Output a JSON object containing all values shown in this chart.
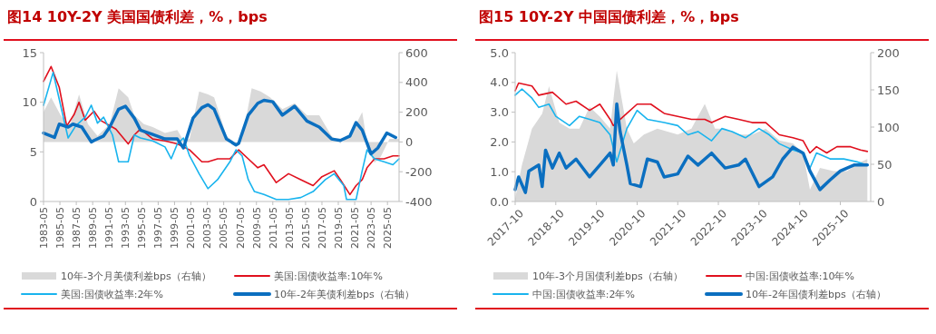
{
  "chart_data": [
    {
      "type": "line",
      "title": "图14  10Y-2Y 美国国债利差，%，bps",
      "legend": "bottom",
      "xlim": [
        "1983-05",
        "2026-10"
      ],
      "xticks": [
        "1983-05",
        "1985-05",
        "1987-05",
        "1989-05",
        "1991-05",
        "1993-05",
        "1995-05",
        "1997-05",
        "1999-05",
        "2001-05",
        "2003-05",
        "2005-05",
        "2007-05",
        "2009-05",
        "2011-05",
        "2013-05",
        "2015-05",
        "2017-05",
        "2019-05",
        "2021-05",
        "2023-05",
        "2025-05"
      ],
      "ylim": [
        0,
        15
      ],
      "yticks": [
        0,
        5,
        10,
        15
      ],
      "y2lim": [
        -400,
        600
      ],
      "y2ticks": [
        -400,
        -200,
        0,
        200,
        400,
        600
      ],
      "series": [
        {
          "name": "10年-3个月美债利差bps（右轴）",
          "type": "area",
          "axis": "y2",
          "color": "#d9d9d9",
          "x": [
            "1983-05",
            "1984-04",
            "1985-06",
            "1986-07",
            "1987-09",
            "1988-10",
            "1989-12",
            "1991-06",
            "1992-07",
            "1993-09",
            "1994-06",
            "1995-08",
            "1996-09",
            "1998-03",
            "1999-09",
            "2000-06",
            "2001-03",
            "2002-05",
            "2003-06",
            "2004-03",
            "2005-09",
            "2006-11",
            "2007-08",
            "2008-10",
            "2009-11",
            "2011-01",
            "2012-07",
            "2014-01",
            "2015-07",
            "2017-01",
            "2018-07",
            "2019-08",
            "2020-10",
            "2021-07",
            "2022-04",
            "2023-01",
            "2023-10",
            "2024-07",
            "2025-08",
            "2026-10"
          ],
          "values": [
            200,
            300,
            180,
            100,
            320,
            120,
            40,
            120,
            360,
            300,
            180,
            120,
            100,
            60,
            80,
            10,
            20,
            340,
            320,
            300,
            40,
            -10,
            20,
            360,
            340,
            300,
            220,
            260,
            180,
            180,
            40,
            -10,
            40,
            120,
            200,
            -60,
            -140,
            -100,
            20,
            20
          ]
        },
        {
          "name": "美国:国债收益率:10年%",
          "type": "line",
          "color": "#e0101e",
          "x": [
            "1983-05",
            "1984-04",
            "1985-04",
            "1986-03",
            "1987-02",
            "1987-09",
            "1988-06",
            "1989-07",
            "1990-04",
            "1992-03",
            "1993-09",
            "1994-06",
            "1995-03",
            "1996-09",
            "1998-03",
            "1999-09",
            "2000-06",
            "2001-03",
            "2002-09",
            "2003-06",
            "2004-08",
            "2006-02",
            "2007-03",
            "2008-05",
            "2009-07",
            "2010-04",
            "2011-10",
            "2013-04",
            "2014-10",
            "2016-04",
            "2017-05",
            "2018-11",
            "2019-08",
            "2020-10",
            "2021-07",
            "2022-04",
            "2022-11",
            "2023-10",
            "2024-12",
            "2026-01",
            "2026-10"
          ],
          "values": [
            12.1,
            13.6,
            11.5,
            7.6,
            8.8,
            10.0,
            8.2,
            9.1,
            8.2,
            7.3,
            5.8,
            6.7,
            7.3,
            6.3,
            6.1,
            5.8,
            5.5,
            5.2,
            4.0,
            4.0,
            4.3,
            4.3,
            5.2,
            4.3,
            3.4,
            3.7,
            1.9,
            2.8,
            2.2,
            1.6,
            2.5,
            3.1,
            2.2,
            0.7,
            1.6,
            2.2,
            3.4,
            4.3,
            4.3,
            4.6,
            4.6
          ]
        },
        {
          "name": "美国:国债收益率:2年%",
          "type": "line",
          "color": "#19b4ee",
          "x": [
            "1983-05",
            "1984-07",
            "1985-06",
            "1986-05",
            "1987-04",
            "1988-06",
            "1989-03",
            "1989-12",
            "1990-09",
            "1991-10",
            "1992-07",
            "1993-09",
            "1994-06",
            "1995-03",
            "1996-09",
            "1998-03",
            "1998-12",
            "1999-09",
            "2000-06",
            "2001-03",
            "2002-05",
            "2003-06",
            "2004-08",
            "2006-02",
            "2006-11",
            "2007-08",
            "2008-05",
            "2009-02",
            "2010-04",
            "2011-10",
            "2013-04",
            "2014-10",
            "2016-04",
            "2017-10",
            "2018-11",
            "2020-01",
            "2020-05",
            "2021-07",
            "2022-04",
            "2022-11",
            "2023-10",
            "2024-12",
            "2026-01",
            "2026-10"
          ],
          "values": [
            9.7,
            13.0,
            9.7,
            6.4,
            7.6,
            8.5,
            9.7,
            7.9,
            8.5,
            6.7,
            4.0,
            4.0,
            6.7,
            6.4,
            6.1,
            5.5,
            4.3,
            5.8,
            6.4,
            4.6,
            2.8,
            1.3,
            2.2,
            4.0,
            5.2,
            4.6,
            2.2,
            1.0,
            0.7,
            0.2,
            0.2,
            0.4,
            1.0,
            2.2,
            2.8,
            1.6,
            0.2,
            0.2,
            3.1,
            5.2,
            4.3,
            4.0,
            3.7,
            4.3
          ]
        },
        {
          "name": "10年-2年美债利差bps（右轴）",
          "type": "line",
          "axis": "y2",
          "color": "#0b6fc0",
          "x": [
            "1983-05",
            "1984-09",
            "1985-04",
            "1986-05",
            "1986-12",
            "1988-01",
            "1989-03",
            "1989-07",
            "1990-09",
            "1991-06",
            "1992-07",
            "1993-05",
            "1994-06",
            "1995-03",
            "1996-09",
            "1998-03",
            "1999-09",
            "2000-06",
            "2001-08",
            "2002-09",
            "2003-06",
            "2004-03",
            "2005-09",
            "2006-11",
            "2007-03",
            "2008-05",
            "2009-07",
            "2010-04",
            "2011-05",
            "2012-07",
            "2014-01",
            "2015-07",
            "2017-01",
            "2018-07",
            "2019-08",
            "2020-10",
            "2021-07",
            "2022-04",
            "2023-05",
            "2024-03",
            "2025-04",
            "2026-05"
          ],
          "values": [
            60,
            30,
            120,
            100,
            120,
            100,
            0,
            10,
            40,
            100,
            220,
            240,
            160,
            80,
            50,
            20,
            20,
            -40,
            160,
            230,
            250,
            220,
            20,
            -20,
            -10,
            180,
            260,
            280,
            270,
            180,
            240,
            140,
            100,
            20,
            10,
            40,
            130,
            80,
            -80,
            -40,
            60,
            30
          ]
        }
      ]
    },
    {
      "type": "line",
      "title": "图15  10Y-2Y 中国国债利差，%，bps",
      "legend": "bottom",
      "xlim": [
        "2017-10",
        "2026-07"
      ],
      "xticks": [
        "2017-10",
        "2018-10",
        "2019-10",
        "2020-10",
        "2021-10",
        "2022-10",
        "2023-10",
        "2024-10",
        "2025-10"
      ],
      "ylim": [
        0,
        5
      ],
      "yticks": [
        {
          "value": 0,
          "label": "0.0"
        },
        {
          "value": 1,
          "label": "1.0"
        },
        {
          "value": 2,
          "label": "2.0"
        },
        {
          "value": 3,
          "label": "3.0"
        },
        {
          "value": 4,
          "label": "4.0"
        },
        {
          "value": 5,
          "label": "5.0"
        }
      ],
      "y2lim": [
        0,
        200
      ],
      "y2ticks": [
        0,
        50,
        100,
        150,
        200
      ],
      "series": [
        {
          "name": "10年-3个月国债利差bps（右轴）",
          "type": "area",
          "axis": "y2",
          "color": "#d9d9d9",
          "x": [
            "2017-10",
            "2017-12",
            "2018-03",
            "2018-06",
            "2018-08",
            "2018-11",
            "2019-02",
            "2019-05",
            "2019-08",
            "2019-11",
            "2020-02",
            "2020-04",
            "2020-07",
            "2020-09",
            "2020-12",
            "2021-04",
            "2021-07",
            "2021-10",
            "2022-02",
            "2022-06",
            "2022-09",
            "2022-12",
            "2023-04",
            "2023-08",
            "2023-12",
            "2024-04",
            "2024-08",
            "2024-11",
            "2025-01",
            "2025-04",
            "2025-08",
            "2025-12",
            "2026-04",
            "2026-06"
          ],
          "values": [
            4,
            49,
            98,
            118,
            155,
            106,
            98,
            98,
            127,
            114,
            98,
            176,
            98,
            78,
            90,
            98,
            94,
            90,
            98,
            131,
            98,
            98,
            90,
            90,
            98,
            82,
            78,
            65,
            16,
            45,
            41,
            41,
            53,
            57
          ]
        },
        {
          "name": "中国:国债收益率:10年%",
          "type": "line",
          "color": "#e0101e",
          "x": [
            "2017-10",
            "2017-11",
            "2018-03",
            "2018-05",
            "2018-09",
            "2019-01",
            "2019-04",
            "2019-08",
            "2019-11",
            "2020-02",
            "2020-03",
            "2020-07",
            "2020-10",
            "2021-02",
            "2021-06",
            "2021-10",
            "2022-02",
            "2022-06",
            "2022-08",
            "2022-12",
            "2023-04",
            "2023-08",
            "2023-12",
            "2024-04",
            "2024-08",
            "2024-11",
            "2025-01",
            "2025-03",
            "2025-06",
            "2025-09",
            "2026-01",
            "2026-04",
            "2026-06"
          ],
          "values": [
            3.72,
            3.98,
            3.88,
            3.57,
            3.67,
            3.27,
            3.37,
            3.06,
            3.27,
            2.76,
            2.55,
            2.96,
            3.27,
            3.27,
            2.96,
            2.86,
            2.76,
            2.76,
            2.65,
            2.86,
            2.76,
            2.65,
            2.65,
            2.24,
            2.14,
            2.04,
            1.63,
            1.84,
            1.63,
            1.84,
            1.84,
            1.73,
            1.68
          ]
        },
        {
          "name": "中国:国债收益率:2年%",
          "type": "line",
          "color": "#19b4ee",
          "x": [
            "2017-10",
            "2017-12",
            "2018-03",
            "2018-05",
            "2018-08",
            "2018-10",
            "2019-02",
            "2019-05",
            "2019-08",
            "2019-11",
            "2020-02",
            "2020-04",
            "2020-07",
            "2020-10",
            "2021-01",
            "2021-06",
            "2021-10",
            "2022-01",
            "2022-04",
            "2022-08",
            "2022-11",
            "2023-02",
            "2023-06",
            "2023-10",
            "2024-01",
            "2024-04",
            "2024-08",
            "2024-11",
            "2025-01",
            "2025-03",
            "2025-07",
            "2025-11",
            "2026-03",
            "2026-06"
          ],
          "values": [
            3.57,
            3.78,
            3.47,
            3.16,
            3.27,
            2.86,
            2.55,
            2.86,
            2.76,
            2.65,
            2.24,
            1.33,
            2.45,
            3.06,
            2.76,
            2.65,
            2.55,
            2.24,
            2.35,
            2.04,
            2.45,
            2.35,
            2.14,
            2.45,
            2.24,
            1.94,
            1.73,
            1.63,
            1.12,
            1.63,
            1.43,
            1.43,
            1.33,
            1.22
          ]
        },
        {
          "name": "10年-2年国债利差bps（右轴）",
          "type": "line",
          "axis": "y2",
          "color": "#0b6fc0",
          "x": [
            "2017-10",
            "2017-11",
            "2018-01",
            "2018-02",
            "2018-05",
            "2018-06",
            "2018-07",
            "2018-09",
            "2018-11",
            "2019-01",
            "2019-04",
            "2019-08",
            "2019-11",
            "2020-02",
            "2020-03",
            "2020-04",
            "2020-05",
            "2020-07",
            "2020-08",
            "2020-11",
            "2021-01",
            "2021-04",
            "2021-06",
            "2021-10",
            "2022-01",
            "2022-04",
            "2022-08",
            "2022-12",
            "2023-04",
            "2023-06",
            "2023-10",
            "2024-02",
            "2024-05",
            "2024-08",
            "2024-11",
            "2025-01",
            "2025-04",
            "2025-07",
            "2025-10",
            "2026-02",
            "2026-05",
            "2026-06"
          ],
          "values": [
            16,
            33,
            12,
            41,
            49,
            20,
            69,
            45,
            65,
            45,
            57,
            33,
            49,
            65,
            49,
            131,
            94,
            49,
            24,
            20,
            57,
            53,
            33,
            37,
            61,
            49,
            65,
            45,
            49,
            57,
            20,
            33,
            57,
            73,
            65,
            41,
            16,
            29,
            41,
            49,
            49,
            49
          ]
        }
      ]
    }
  ]
}
